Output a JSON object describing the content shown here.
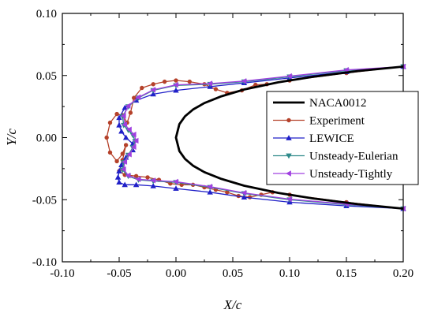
{
  "chart_data": {
    "type": "line",
    "title": "",
    "xlabel": "X/c",
    "ylabel": "Y/c",
    "xlim": [
      -0.1,
      0.2
    ],
    "ylim": [
      -0.1,
      0.1
    ],
    "x_ticks": [
      "-0.10",
      "-0.05",
      "0.00",
      "0.05",
      "0.10",
      "0.15",
      "0.20"
    ],
    "y_ticks": [
      "-0.10",
      "-0.05",
      "0.00",
      "0.05",
      "0.10"
    ],
    "grid": false,
    "legend_position": "right",
    "series": [
      {
        "name": "NACA0012",
        "color": "#000000",
        "marker": "none",
        "x": [
          0.2,
          0.16,
          0.12,
          0.09,
          0.06,
          0.04,
          0.025,
          0.015,
          0.008,
          0.003,
          0.0,
          0.003,
          0.008,
          0.015,
          0.025,
          0.04,
          0.06,
          0.09,
          0.12,
          0.16,
          0.2
        ],
        "y": [
          0.0572,
          0.0536,
          0.0489,
          0.0445,
          0.0387,
          0.0333,
          0.0278,
          0.0226,
          0.0172,
          0.0108,
          0.0,
          -0.0108,
          -0.0172,
          -0.0226,
          -0.0278,
          -0.0333,
          -0.0387,
          -0.0445,
          -0.0489,
          -0.0536,
          -0.0572
        ]
      },
      {
        "name": "Experiment",
        "color": "#b5412a",
        "marker": "circle",
        "x": [
          0.2,
          0.15,
          0.1,
          0.08,
          0.07,
          0.058,
          0.045,
          0.035,
          0.025,
          0.012,
          0.0,
          -0.01,
          -0.02,
          -0.03,
          -0.037,
          -0.04,
          -0.043,
          -0.047,
          -0.052,
          -0.058,
          -0.061,
          -0.058,
          -0.052,
          -0.047,
          -0.044,
          -0.047,
          -0.05,
          -0.045,
          -0.035,
          -0.025,
          -0.015,
          -0.005,
          0.005,
          0.015,
          0.025,
          0.035,
          0.045,
          0.055,
          0.065,
          0.075,
          0.085,
          0.1,
          0.15,
          0.2
        ],
        "y": [
          0.0572,
          0.052,
          0.046,
          0.043,
          0.0425,
          0.038,
          0.036,
          0.039,
          0.043,
          0.045,
          0.046,
          0.045,
          0.043,
          0.04,
          0.032,
          0.02,
          0.012,
          0.018,
          0.019,
          0.012,
          0.0,
          -0.012,
          -0.019,
          -0.013,
          -0.006,
          -0.018,
          -0.027,
          -0.03,
          -0.031,
          -0.032,
          -0.034,
          -0.037,
          -0.038,
          -0.038,
          -0.04,
          -0.042,
          -0.044,
          -0.047,
          -0.048,
          -0.046,
          -0.044,
          -0.046,
          -0.052,
          -0.0572
        ]
      },
      {
        "name": "LEWICE",
        "color": "#2020c8",
        "marker": "triangle-up",
        "x": [
          0.2,
          0.15,
          0.1,
          0.06,
          0.03,
          0.0,
          -0.02,
          -0.035,
          -0.045,
          -0.05,
          -0.05,
          -0.048,
          -0.044,
          -0.038,
          -0.038,
          -0.044,
          -0.048,
          -0.05,
          -0.051,
          -0.05,
          -0.045,
          -0.035,
          -0.02,
          0.0,
          0.03,
          0.06,
          0.1,
          0.15,
          0.2
        ],
        "y": [
          0.0572,
          0.053,
          0.048,
          0.044,
          0.041,
          0.038,
          0.035,
          0.03,
          0.024,
          0.016,
          0.01,
          0.005,
          0.0,
          -0.005,
          -0.01,
          -0.016,
          -0.022,
          -0.027,
          -0.032,
          -0.036,
          -0.038,
          -0.038,
          -0.039,
          -0.041,
          -0.044,
          -0.048,
          -0.052,
          -0.055,
          -0.0572
        ]
      },
      {
        "name": "Unsteady-Eulerian",
        "color": "#2f8a8a",
        "marker": "triangle-down",
        "x": [
          0.2,
          0.15,
          0.1,
          0.06,
          0.03,
          0.0,
          -0.02,
          -0.033,
          -0.042,
          -0.047,
          -0.046,
          -0.042,
          -0.038,
          -0.036,
          -0.038,
          -0.042,
          -0.046,
          -0.047,
          -0.042,
          -0.033,
          -0.02,
          0.0,
          0.03,
          0.06,
          0.1,
          0.15,
          0.2
        ],
        "y": [
          0.0572,
          0.054,
          0.049,
          0.045,
          0.043,
          0.042,
          0.038,
          0.032,
          0.025,
          0.017,
          0.01,
          0.006,
          0.002,
          -0.003,
          -0.008,
          -0.014,
          -0.02,
          -0.026,
          -0.031,
          -0.034,
          -0.035,
          -0.036,
          -0.04,
          -0.045,
          -0.05,
          -0.054,
          -0.0572
        ]
      },
      {
        "name": "Unsteady-Tightly",
        "color": "#a040e0",
        "marker": "triangle-left",
        "x": [
          0.2,
          0.15,
          0.1,
          0.06,
          0.03,
          0.0,
          -0.02,
          -0.033,
          -0.042,
          -0.046,
          -0.045,
          -0.041,
          -0.037,
          -0.035,
          -0.037,
          -0.041,
          -0.045,
          -0.046,
          -0.042,
          -0.033,
          -0.02,
          0.0,
          0.03,
          0.06,
          0.1,
          0.15,
          0.2
        ],
        "y": [
          0.0572,
          0.0545,
          0.0495,
          0.0455,
          0.0435,
          0.0425,
          0.0385,
          0.0325,
          0.0255,
          0.0175,
          0.0105,
          0.0065,
          0.0025,
          -0.0025,
          -0.0075,
          -0.0135,
          -0.0195,
          -0.0255,
          -0.0305,
          -0.0335,
          -0.0345,
          -0.0355,
          -0.0395,
          -0.0445,
          -0.0495,
          -0.0535,
          -0.0572
        ]
      }
    ]
  }
}
